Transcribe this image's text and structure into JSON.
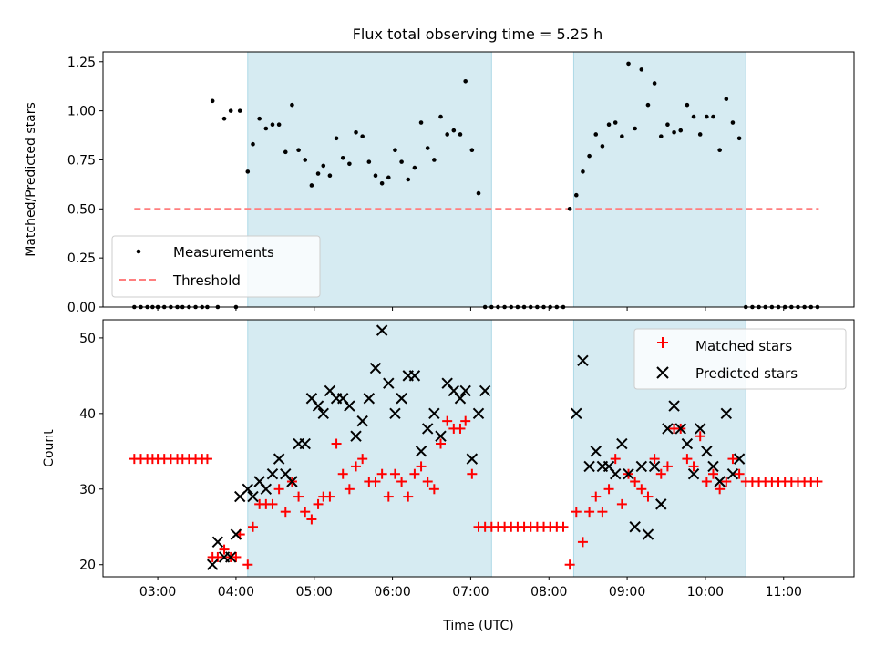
{
  "chart_data": [
    {
      "type": "scatter",
      "title": "Flux total observing time = 5.25 h",
      "xlabel": "",
      "ylabel": "Matched/Predicted stars",
      "xlim": [
        "02:18",
        "11:54"
      ],
      "ylim": [
        0,
        1.3
      ],
      "yticks": [
        "0.00",
        "0.25",
        "0.50",
        "0.75",
        "1.00",
        "1.25"
      ],
      "x_ticks_unlabeled": [
        "03:00",
        "04:00",
        "05:00",
        "06:00",
        "07:00",
        "08:00",
        "09:00",
        "10:00",
        "11:00"
      ],
      "shaded_intervals": [
        [
          "04:09",
          "07:16"
        ],
        [
          "08:19",
          "10:31"
        ]
      ],
      "legend": {
        "placement": "lower left",
        "entries": [
          "Measurements",
          "Threshold"
        ]
      },
      "threshold": {
        "name": "Threshold",
        "y": 0.5,
        "x_range": [
          "02:42",
          "11:27"
        ],
        "color": "#ff7f7f",
        "style": "dashed"
      },
      "series": [
        {
          "name": "Measurements",
          "color": "#000000",
          "marker": "dot",
          "x": [
            "02:42",
            "02:47",
            "02:52",
            "02:56",
            "03:00",
            "03:05",
            "03:10",
            "03:15",
            "03:19",
            "03:24",
            "03:29",
            "03:34",
            "03:38",
            "03:42",
            "03:46",
            "03:51",
            "03:56",
            "04:00",
            "04:03",
            "04:09",
            "04:13",
            "04:18",
            "04:23",
            "04:28",
            "04:33",
            "04:38",
            "04:43",
            "04:48",
            "04:53",
            "04:58",
            "05:03",
            "05:07",
            "05:12",
            "05:17",
            "05:22",
            "05:27",
            "05:32",
            "05:37",
            "05:42",
            "05:47",
            "05:52",
            "05:57",
            "06:02",
            "06:07",
            "06:12",
            "06:17",
            "06:22",
            "06:27",
            "06:32",
            "06:37",
            "06:42",
            "06:47",
            "06:52",
            "06:56",
            "07:01",
            "07:06",
            "07:11",
            "07:16",
            "07:21",
            "07:26",
            "07:31",
            "07:36",
            "07:41",
            "07:46",
            "07:51",
            "07:56",
            "08:01",
            "08:06",
            "08:11",
            "08:16",
            "08:21",
            "08:26",
            "08:31",
            "08:36",
            "08:41",
            "08:46",
            "08:51",
            "08:56",
            "09:01",
            "09:06",
            "09:11",
            "09:16",
            "09:21",
            "09:26",
            "09:31",
            "09:36",
            "09:41",
            "09:46",
            "09:51",
            "09:56",
            "10:01",
            "10:06",
            "10:11",
            "10:16",
            "10:21",
            "10:26",
            "10:31",
            "10:36",
            "10:41",
            "10:46",
            "10:51",
            "10:56",
            "11:01",
            "11:06",
            "11:11",
            "11:16",
            "11:21",
            "11:26"
          ],
          "y": [
            0,
            0,
            0,
            0,
            0,
            0,
            0,
            0,
            0,
            0,
            0,
            0,
            0,
            1.05,
            0,
            0.96,
            1.0,
            0,
            1.0,
            0.69,
            0.83,
            0.96,
            0.91,
            0.93,
            0.93,
            0.79,
            1.03,
            0.8,
            0.75,
            0.62,
            0.68,
            0.72,
            0.67,
            0.86,
            0.76,
            0.73,
            0.89,
            0.87,
            0.74,
            0.67,
            0.63,
            0.66,
            0.8,
            0.74,
            0.65,
            0.71,
            0.94,
            0.81,
            0.75,
            0.97,
            0.88,
            0.9,
            0.88,
            1.15,
            0.8,
            0.58,
            0,
            0,
            0,
            0,
            0,
            0,
            0,
            0,
            0,
            0,
            0,
            0,
            0,
            0.5,
            0.57,
            0.69,
            0.77,
            0.88,
            0.82,
            0.93,
            0.94,
            0.87,
            1.24,
            0.91,
            1.21,
            1.03,
            1.14,
            0.87,
            0.93,
            0.89,
            0.9,
            1.03,
            0.97,
            0.88,
            0.97,
            0.97,
            0.8,
            1.06,
            0.94,
            0.86,
            0,
            0,
            0,
            0,
            0,
            0,
            0,
            0,
            0,
            0,
            0,
            0
          ]
        }
      ]
    },
    {
      "type": "scatter",
      "xlabel": "Time (UTC)",
      "ylabel": "Count",
      "xlim": [
        "02:18",
        "11:54"
      ],
      "ylim": [
        18.4,
        52.4
      ],
      "yticks": [
        "20",
        "30",
        "40",
        "50"
      ],
      "x_ticks": [
        "03:00",
        "04:00",
        "05:00",
        "06:00",
        "07:00",
        "08:00",
        "09:00",
        "10:00",
        "11:00"
      ],
      "shaded_intervals": [
        [
          "04:09",
          "07:16"
        ],
        [
          "08:19",
          "10:31"
        ]
      ],
      "legend": {
        "placement": "upper right",
        "entries": [
          "Matched stars",
          "Predicted stars"
        ]
      },
      "series": [
        {
          "name": "Matched stars",
          "color": "#ff0000",
          "marker": "plus",
          "x": [
            "02:42",
            "02:47",
            "02:52",
            "02:56",
            "03:00",
            "03:05",
            "03:10",
            "03:15",
            "03:19",
            "03:24",
            "03:29",
            "03:34",
            "03:38",
            "03:42",
            "03:46",
            "03:51",
            "03:56",
            "04:00",
            "04:03",
            "04:09",
            "04:13",
            "04:18",
            "04:23",
            "04:28",
            "04:33",
            "04:38",
            "04:43",
            "04:48",
            "04:53",
            "04:58",
            "05:03",
            "05:07",
            "05:12",
            "05:17",
            "05:22",
            "05:27",
            "05:32",
            "05:37",
            "05:42",
            "05:47",
            "05:52",
            "05:57",
            "06:02",
            "06:07",
            "06:12",
            "06:17",
            "06:22",
            "06:27",
            "06:32",
            "06:37",
            "06:42",
            "06:47",
            "06:52",
            "06:56",
            "07:01",
            "07:06",
            "07:11",
            "07:16",
            "07:21",
            "07:26",
            "07:31",
            "07:36",
            "07:41",
            "07:46",
            "07:51",
            "07:56",
            "08:01",
            "08:06",
            "08:11",
            "08:16",
            "08:21",
            "08:26",
            "08:31",
            "08:36",
            "08:41",
            "08:46",
            "08:51",
            "08:56",
            "09:01",
            "09:06",
            "09:11",
            "09:16",
            "09:21",
            "09:26",
            "09:31",
            "09:36",
            "09:41",
            "09:46",
            "09:51",
            "09:56",
            "10:01",
            "10:06",
            "10:11",
            "10:16",
            "10:21",
            "10:26",
            "10:31",
            "10:36",
            "10:41",
            "10:46",
            "10:51",
            "10:56",
            "11:01",
            "11:06",
            "11:11",
            "11:16",
            "11:21",
            "11:26"
          ],
          "y": [
            34,
            34,
            34,
            34,
            34,
            34,
            34,
            34,
            34,
            34,
            34,
            34,
            34,
            21,
            21,
            22,
            21,
            21,
            24,
            20,
            25,
            28,
            28,
            28,
            30,
            27,
            31,
            29,
            27,
            26,
            28,
            29,
            29,
            36,
            32,
            30,
            33,
            34,
            31,
            31,
            32,
            29,
            32,
            31,
            29,
            32,
            33,
            31,
            30,
            36,
            39,
            38,
            38,
            39,
            32,
            25,
            25,
            25,
            25,
            25,
            25,
            25,
            25,
            25,
            25,
            25,
            25,
            25,
            25,
            20,
            27,
            23,
            27,
            29,
            27,
            30,
            34,
            28,
            32,
            31,
            30,
            29,
            34,
            32,
            33,
            38,
            38,
            34,
            33,
            37,
            31,
            32,
            30,
            31,
            34,
            32,
            31,
            31,
            31,
            31,
            31,
            31,
            31,
            31,
            31,
            31,
            31,
            31
          ]
        },
        {
          "name": "Predicted stars",
          "color": "#000000",
          "marker": "x",
          "x": [
            "03:42",
            "03:46",
            "03:51",
            "03:56",
            "04:00",
            "04:03",
            "04:09",
            "04:13",
            "04:18",
            "04:23",
            "04:28",
            "04:33",
            "04:38",
            "04:43",
            "04:48",
            "04:53",
            "04:58",
            "05:03",
            "05:07",
            "05:12",
            "05:17",
            "05:22",
            "05:27",
            "05:32",
            "05:37",
            "05:42",
            "05:47",
            "05:52",
            "05:57",
            "06:02",
            "06:07",
            "06:12",
            "06:17",
            "06:22",
            "06:27",
            "06:32",
            "06:37",
            "06:42",
            "06:47",
            "06:52",
            "06:56",
            "07:01",
            "07:06",
            "07:11",
            "08:21",
            "08:26",
            "08:31",
            "08:36",
            "08:41",
            "08:46",
            "08:51",
            "08:56",
            "09:01",
            "09:06",
            "09:11",
            "09:16",
            "09:21",
            "09:26",
            "09:31",
            "09:36",
            "09:41",
            "09:46",
            "09:51",
            "09:56",
            "10:01",
            "10:06",
            "10:11",
            "10:16",
            "10:21",
            "10:26"
          ],
          "y": [
            20,
            23,
            21,
            21,
            24,
            29,
            30,
            29,
            31,
            30,
            32,
            34,
            32,
            31,
            36,
            36,
            42,
            41,
            40,
            43,
            42,
            42,
            41,
            37,
            39,
            42,
            46,
            51,
            44,
            40,
            42,
            45,
            45,
            35,
            38,
            40,
            37,
            44,
            43,
            42,
            43,
            34,
            40,
            43,
            40,
            47,
            33,
            35,
            33,
            33,
            32,
            36,
            32,
            25,
            33,
            24,
            33,
            28,
            38,
            41,
            38,
            36,
            32,
            38,
            35,
            33,
            31,
            40,
            32,
            34
          ]
        }
      ]
    }
  ]
}
